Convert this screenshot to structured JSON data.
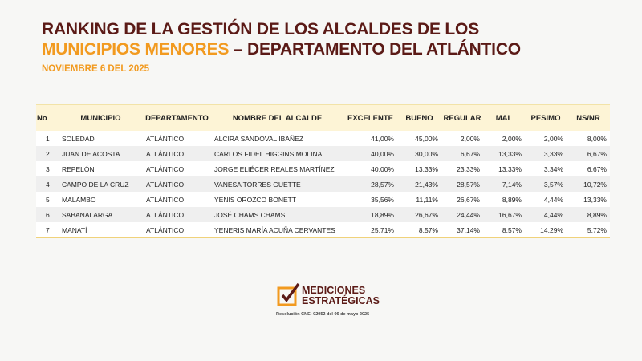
{
  "header": {
    "title_line1": "RANKING DE LA GESTIÓN DE LOS ALCALDES DE LOS",
    "title_highlight": "MUNICIPIOS MENORES",
    "title_rest": "– DEPARTAMENTO DEL ATLÁNTICO",
    "date": "NOVIEMBRE 6 DEL 2025"
  },
  "table": {
    "columns": [
      "No",
      "MUNICIPIO",
      "DEPARTAMENTO",
      "NOMBRE DEL ALCALDE",
      "EXCELENTE",
      "BUENO",
      "REGULAR",
      "MAL",
      "PESIMO",
      "NS/NR"
    ],
    "rows": [
      [
        "1",
        "SOLEDAD",
        "ATLÁNTICO",
        "ALCIRA SANDOVAL IBAÑEZ",
        "41,00%",
        "45,00%",
        "2,00%",
        "2,00%",
        "2,00%",
        "8,00%"
      ],
      [
        "2",
        "JUAN DE ACOSTA",
        "ATLÁNTICO",
        "CARLOS FIDEL HIGGINS MOLINA",
        "40,00%",
        "30,00%",
        "6,67%",
        "13,33%",
        "3,33%",
        "6,67%"
      ],
      [
        "3",
        "REPELÓN",
        "ATLÁNTICO",
        "JORGE ELIÉCER REALES MARTÍNEZ",
        "40,00%",
        "13,33%",
        "23,33%",
        "13,33%",
        "3,34%",
        "6,67%"
      ],
      [
        "4",
        "CAMPO DE LA CRUZ",
        "ATLÁNTICO",
        "VANESA TORRES GUETTE",
        "28,57%",
        "21,43%",
        "28,57%",
        "7,14%",
        "3,57%",
        "10,72%"
      ],
      [
        "5",
        "MALAMBO",
        "ATLÁNTICO",
        "YENIS OROZCO BONETT",
        "35,56%",
        "11,11%",
        "26,67%",
        "8,89%",
        "4,44%",
        "13,33%"
      ],
      [
        "6",
        "SABANALARGA",
        "ATLÁNTICO",
        "JOSÉ CHAMS CHAMS",
        "18,89%",
        "26,67%",
        "24,44%",
        "16,67%",
        "4,44%",
        "8,89%"
      ],
      [
        "7",
        "MANATÍ",
        "ATLÁNTICO",
        "YENERIS MARÍA ACUÑA CERVANTES",
        "25,71%",
        "8,57%",
        "37,14%",
        "8,57%",
        "14,29%",
        "5,72%"
      ]
    ]
  },
  "logo": {
    "line1": "MEDICIONES",
    "line2": "ESTRATÉGICAS",
    "resolution": "Resolución CNE: 02052 del 06 de mayo 2025"
  }
}
